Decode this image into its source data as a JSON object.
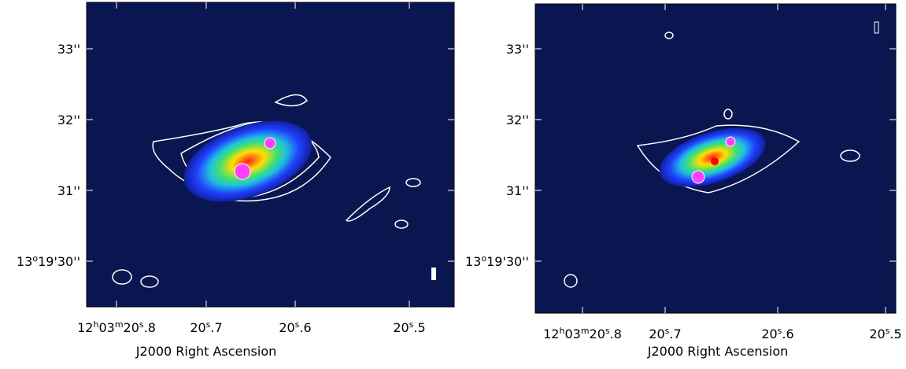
{
  "panels": [
    {
      "x_ticks": [
        [
          "12",
          "h",
          "03",
          "m",
          "20",
          "s",
          ".8"
        ],
        [
          "20",
          "s",
          ".7"
        ],
        [
          "20",
          "s",
          ".6"
        ],
        [
          "20",
          "s",
          ".5"
        ]
      ],
      "y_ticks": [
        [
          "33''"
        ],
        [
          "32''"
        ],
        [
          "31''"
        ],
        [
          "13",
          "o",
          "19'30''"
        ]
      ],
      "x_label": "J2000 Right Ascension"
    },
    {
      "x_ticks": [
        [
          "12",
          "h",
          "03",
          "m",
          "20",
          "s",
          ".8"
        ],
        [
          "20",
          "s",
          ".7"
        ],
        [
          "20",
          "s",
          ".6"
        ],
        [
          "20",
          "s",
          ".5"
        ]
      ],
      "y_ticks": [
        [
          "33''"
        ],
        [
          "32''"
        ],
        [
          "31''"
        ],
        [
          "13",
          "o",
          "19'30''"
        ]
      ],
      "x_label": "J2000 Right Ascension"
    }
  ]
}
